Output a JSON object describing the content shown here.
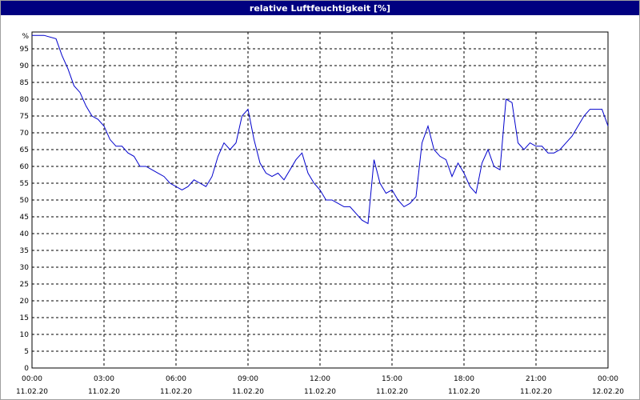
{
  "window": {
    "title": "relative Luftfeuchtigkeit [%]"
  },
  "chart_data": {
    "type": "line",
    "title": "relative Luftfeuchtigkeit [%]",
    "ylabel_unit": "%",
    "ylim": [
      0,
      100
    ],
    "y_ticks": [
      "0",
      "5",
      "10",
      "15",
      "20",
      "25",
      "30",
      "35",
      "40",
      "45",
      "50",
      "55",
      "60",
      "65",
      "70",
      "75",
      "80",
      "85",
      "90",
      "95"
    ],
    "x_ticks": [
      {
        "time": "00:00",
        "date": "11.02.20"
      },
      {
        "time": "03:00",
        "date": "11.02.20"
      },
      {
        "time": "06:00",
        "date": "11.02.20"
      },
      {
        "time": "09:00",
        "date": "11.02.20"
      },
      {
        "time": "12:00",
        "date": "11.02.20"
      },
      {
        "time": "15:00",
        "date": "11.02.20"
      },
      {
        "time": "18:00",
        "date": "11.02.20"
      },
      {
        "time": "21:00",
        "date": "11.02.20"
      },
      {
        "time": "00:00",
        "date": "12.02.20"
      }
    ],
    "grid": true,
    "colors": {
      "line": "#0000cc",
      "grid": "#000000",
      "title_bar": "#000080"
    },
    "series": [
      {
        "x_hours": [
          0,
          0.5,
          1,
          1.25,
          1.5,
          1.75,
          2,
          2.25,
          2.5,
          2.75,
          3,
          3.25,
          3.5,
          3.75,
          4,
          4.25,
          4.5,
          4.75,
          5,
          5.25,
          5.5,
          5.75,
          6,
          6.25,
          6.5,
          6.75,
          7,
          7.25,
          7.5,
          7.75,
          8,
          8.25,
          8.5,
          8.75,
          9,
          9.25,
          9.5,
          9.75,
          10,
          10.25,
          10.5,
          10.75,
          11,
          11.25,
          11.5,
          11.75,
          12,
          12.25,
          12.5,
          12.75,
          13,
          13.25,
          13.5,
          13.75,
          14,
          14.25,
          14.5,
          14.75,
          15,
          15.25,
          15.5,
          15.75,
          16,
          16.25,
          16.5,
          16.75,
          17,
          17.25,
          17.5,
          17.75,
          18,
          18.25,
          18.5,
          18.75,
          19,
          19.25,
          19.5,
          19.75,
          20,
          20.25,
          20.5,
          20.75,
          21,
          21.25,
          21.5,
          21.75,
          22,
          22.25,
          22.5,
          22.75,
          23,
          23.25,
          23.5,
          23.75,
          24
        ],
        "values": [
          99,
          99,
          98,
          93,
          89,
          84,
          82,
          78,
          75,
          74,
          72,
          68,
          66,
          66,
          64,
          63,
          60,
          60,
          59,
          58,
          57,
          55,
          54,
          53,
          54,
          56,
          55,
          54,
          57,
          63,
          67,
          65,
          67,
          75,
          77,
          68,
          61,
          58,
          57,
          58,
          56,
          59,
          62,
          64,
          58,
          55,
          53,
          50,
          50,
          49,
          48,
          48,
          46,
          44,
          43,
          62,
          55,
          52,
          53,
          50,
          48,
          49,
          51,
          67,
          72,
          65,
          63,
          62,
          57,
          61,
          58,
          54,
          52,
          61,
          65,
          60,
          59,
          80,
          79,
          67,
          65,
          67,
          66,
          66,
          64,
          64,
          65,
          67,
          69,
          72,
          75,
          77,
          77,
          77,
          72
        ]
      }
    ]
  }
}
